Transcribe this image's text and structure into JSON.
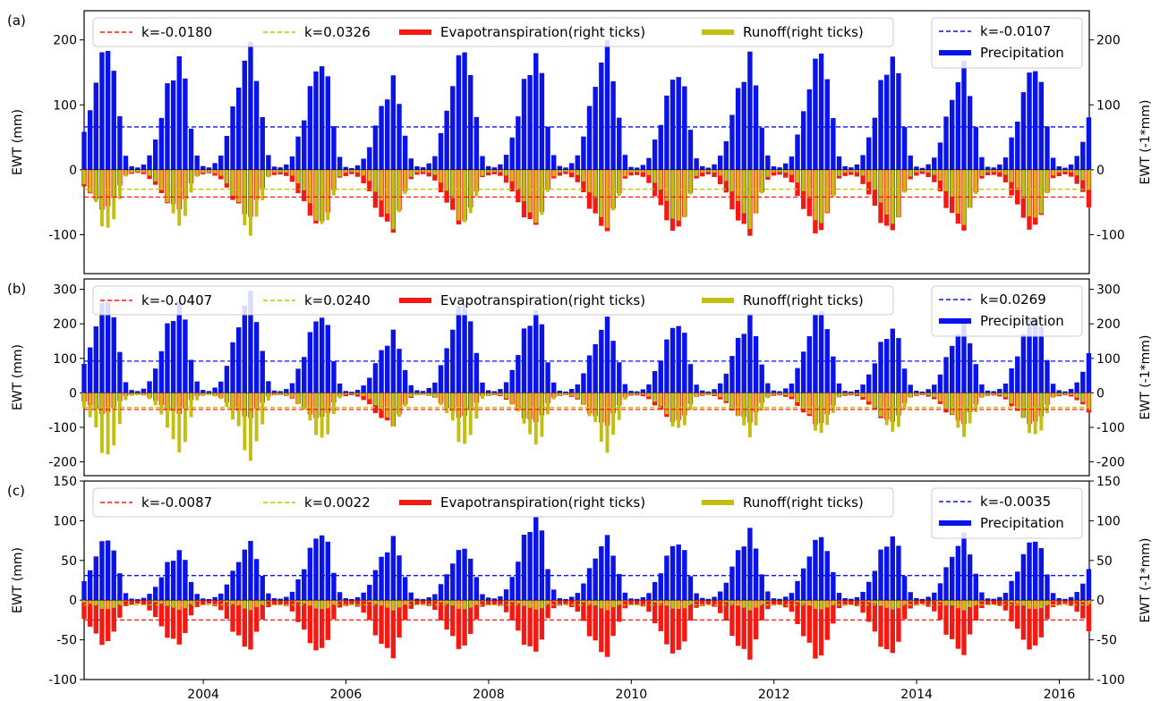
{
  "colors": {
    "precipitation": "#0b14e8",
    "evapotranspiration": "#f21a12",
    "runoff": "#c2bf10",
    "trend_precipitation": "#0b14e8",
    "trend_evapotranspiration": "#f21a12",
    "trend_runoff": "#c2bf10"
  },
  "chart_data": [
    {
      "type": "bar",
      "panel_label": "(a)",
      "ylabel": "EWT (mm)",
      "ylabel_right": "EWT (-1*mm)",
      "ylim": [
        -160,
        245
      ],
      "yticks": [
        -100,
        0,
        100,
        200
      ],
      "yticks_right": [
        -100,
        0,
        100,
        200
      ],
      "x_start": 2002.33,
      "x_end": 2016.42,
      "legend": {
        "trend_et": "k=-0.0180",
        "trend_runoff": "k=0.0326",
        "et": "Evapotranspiration(right ticks)",
        "runoff": "Runoff(right ticks)",
        "trend_precip": "k=-0.0107",
        "precip": "Precipitation"
      },
      "trend_levels": {
        "precipitation": 66,
        "evapotranspiration": -42,
        "runoff": -30
      },
      "annual_peaks": {
        "precipitation": [
          195,
          172,
          190,
          172,
          135,
          190,
          180,
          190,
          155,
          170,
          185,
          178,
          158,
          165
        ],
        "evapotranspiration": [
          -60,
          -60,
          -70,
          -85,
          -90,
          -82,
          -85,
          -90,
          -95,
          -95,
          -96,
          -95,
          -88,
          -92
        ],
        "runoff": [
          -95,
          -85,
          -98,
          -90,
          -85,
          -85,
          -82,
          -85,
          -85,
          -85,
          -85,
          -85,
          -80,
          -80
        ]
      }
    },
    {
      "type": "bar",
      "panel_label": "(b)",
      "ylabel": "EWT (mm)",
      "ylabel_right": "EWT (-1*mm)",
      "ylim": [
        -240,
        330
      ],
      "yticks": [
        -200,
        -100,
        0,
        100,
        200,
        300
      ],
      "yticks_right": [
        -200,
        -100,
        0,
        100,
        200,
        300
      ],
      "x_start": 2002.33,
      "x_end": 2016.42,
      "legend": {
        "trend_et": "k=-0.0407",
        "trend_runoff": "k=0.0240",
        "et": "Evapotranspiration(right ticks)",
        "runoff": "Runoff(right ticks)",
        "trend_precip": "k=0.0269",
        "precip": "Precipitation"
      },
      "trend_levels": {
        "precipitation": 92,
        "evapotranspiration": -48,
        "runoff": -42
      },
      "annual_peaks": {
        "precipitation": [
          280,
          260,
          285,
          235,
          170,
          270,
          240,
          210,
          210,
          215,
          245,
          190,
          200,
          235
        ],
        "evapotranspiration": [
          -60,
          -60,
          -70,
          -75,
          -90,
          -70,
          -85,
          -90,
          -85,
          -80,
          -90,
          -85,
          -85,
          -90
        ],
        "runoff": [
          -190,
          -170,
          -190,
          -140,
          -90,
          -155,
          -150,
          -165,
          -110,
          -120,
          -120,
          -115,
          -120,
          -130
        ]
      }
    },
    {
      "type": "bar",
      "panel_label": "(c)",
      "ylabel": "EWT (mm)",
      "ylabel_right": "EWT (-1*mm)",
      "ylim": [
        -100,
        150
      ],
      "yticks": [
        -100,
        -50,
        0,
        50,
        100,
        150
      ],
      "yticks_right": [
        -100,
        -50,
        0,
        50,
        100,
        150
      ],
      "x_start": 2002.33,
      "x_end": 2016.42,
      "xticks": [
        2004,
        2006,
        2008,
        2010,
        2012,
        2014,
        2016
      ],
      "legend": {
        "trend_et": "k=-0.0087",
        "trend_runoff": "k=0.0022",
        "et": "Evapotranspiration(right ticks)",
        "runoff": "Runoff(right ticks)",
        "trend_precip": "k=-0.0035",
        "precip": "Precipitation"
      },
      "trend_levels": {
        "precipitation": 31,
        "evapotranspiration": -25,
        "runoff": -6
      },
      "annual_peaks": {
        "precipitation": [
          80,
          62,
          72,
          88,
          75,
          68,
          106,
          78,
          76,
          85,
          82,
          82,
          80,
          80
        ],
        "evapotranspiration": [
          -55,
          -55,
          -60,
          -65,
          -68,
          -60,
          -65,
          -68,
          -68,
          -70,
          -72,
          -68,
          -65,
          -62
        ],
        "runoff": [
          -12,
          -12,
          -12,
          -12,
          -12,
          -12,
          -12,
          -12,
          -12,
          -12,
          -12,
          -12,
          -12,
          -12
        ]
      }
    }
  ]
}
